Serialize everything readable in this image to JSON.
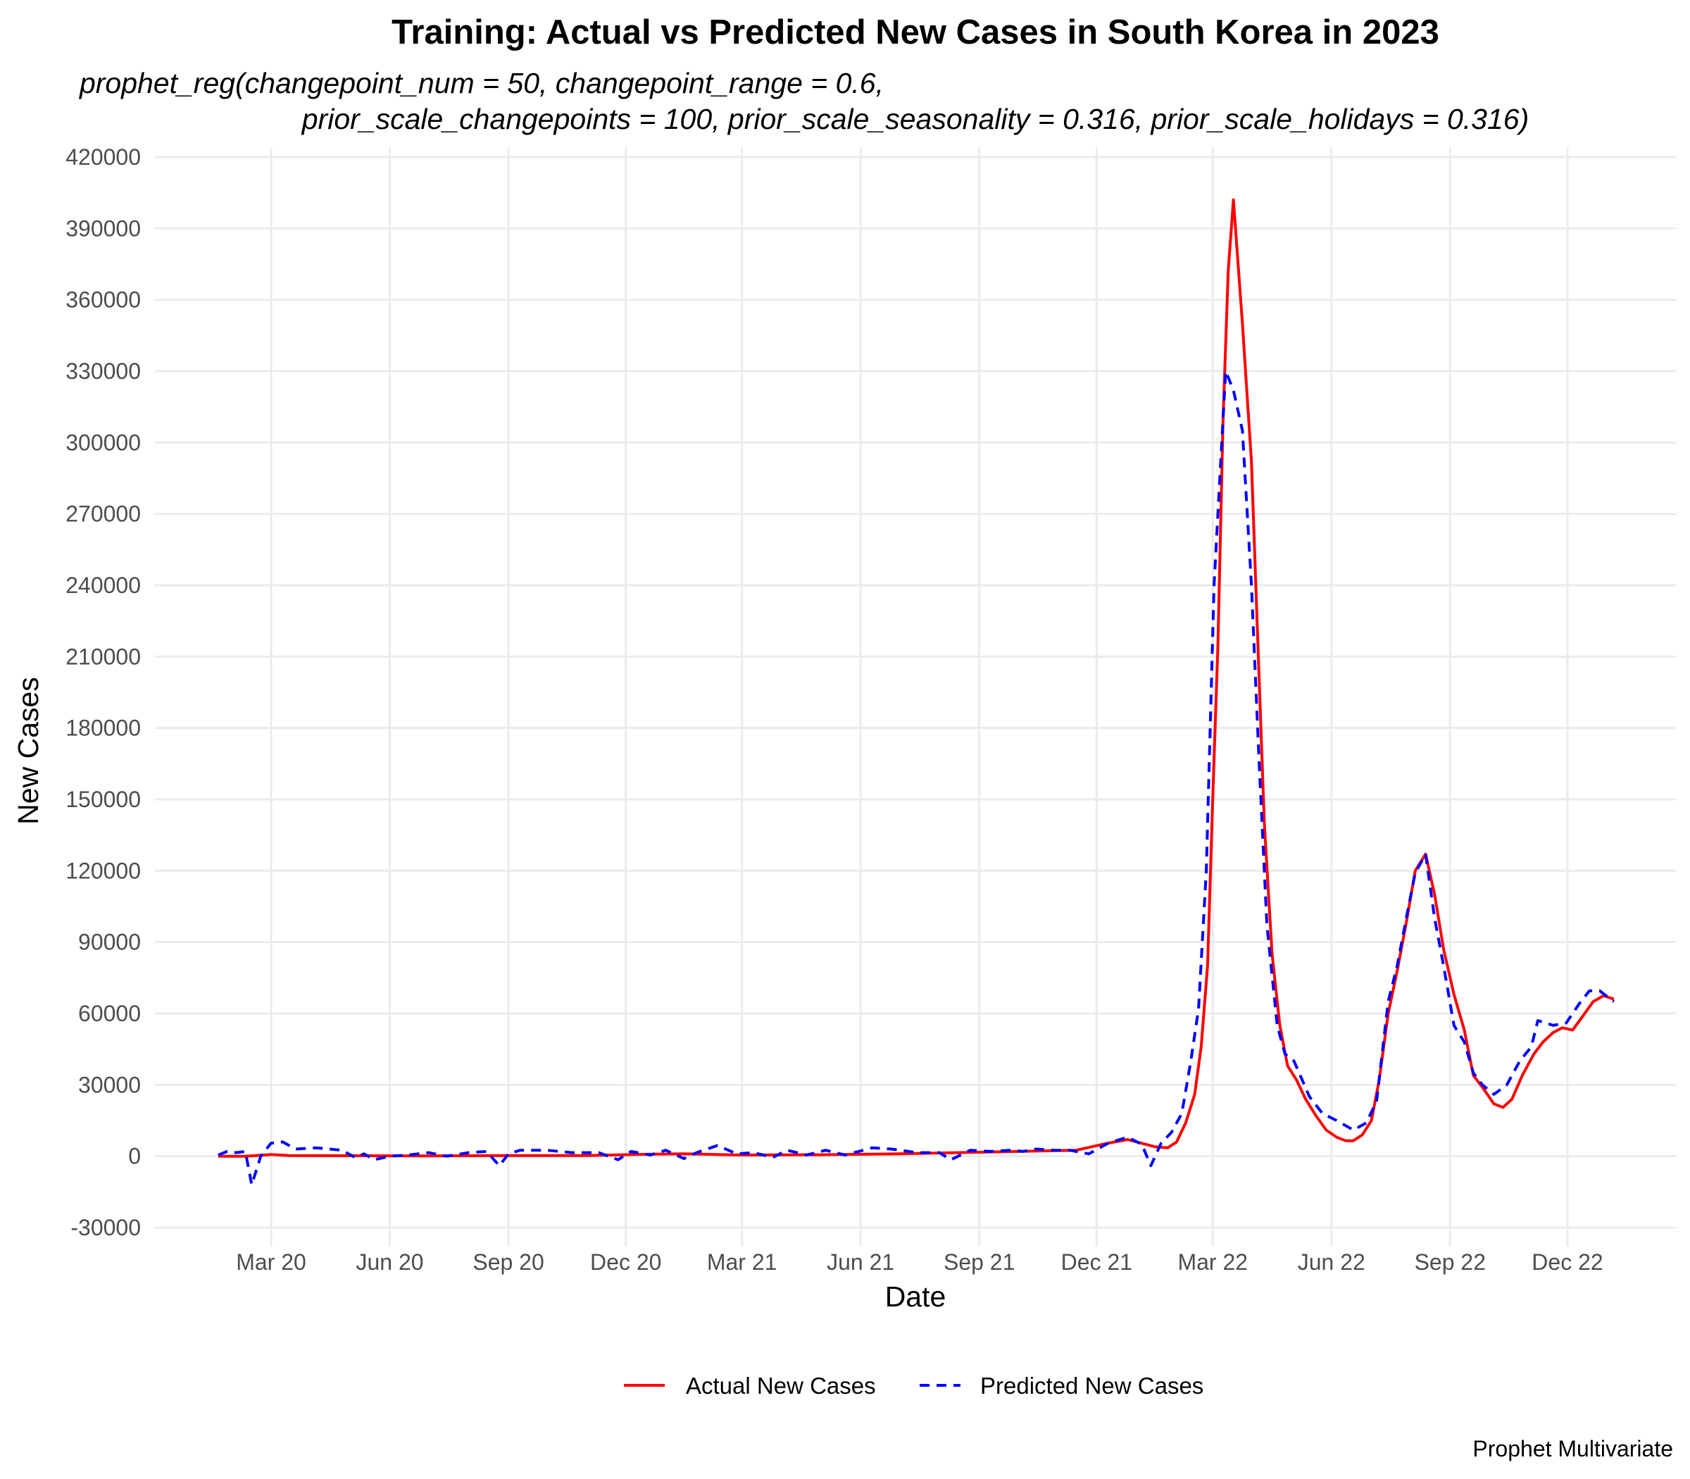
{
  "chart_data": {
    "type": "line",
    "title": "Training: Actual vs Predicted New Cases in South Korea in 2023",
    "subtitle_lines": [
      "prophet_reg(changepoint_num = 50, changepoint_range = 0.6,",
      "prior_scale_changepoints = 100, prior_scale_seasonality = 0.316, prior_scale_holidays = 0.316)"
    ],
    "xlabel": "Date",
    "ylabel": "New Cases",
    "caption": "Prophet Multivariate",
    "ylim": [
      -30000,
      420000
    ],
    "y_ticks": [
      -30000,
      0,
      30000,
      60000,
      90000,
      120000,
      150000,
      180000,
      210000,
      240000,
      270000,
      300000,
      330000,
      360000,
      390000,
      420000
    ],
    "x_ticks": [
      "Mar 20",
      "Jun 20",
      "Sep 20",
      "Dec 20",
      "Mar 21",
      "Jun 21",
      "Sep 21",
      "Dec 21",
      "Mar 22",
      "Jun 22",
      "Sep 22",
      "Dec 22"
    ],
    "x_tick_dates": [
      "2020-03-01",
      "2020-06-01",
      "2020-09-01",
      "2020-12-01",
      "2021-03-01",
      "2021-06-01",
      "2021-09-01",
      "2021-12-01",
      "2022-03-01",
      "2022-06-01",
      "2022-09-01",
      "2022-12-01"
    ],
    "xlim": [
      "2020-01-01",
      "2023-02-28"
    ],
    "grid": true,
    "legend_position": "bottom",
    "series": [
      {
        "name": "Actual New Cases",
        "color": "#ff0000",
        "dash": "solid",
        "points": [
          [
            "2020-01-20",
            0
          ],
          [
            "2020-02-10",
            0
          ],
          [
            "2020-03-01",
            700
          ],
          [
            "2020-03-15",
            300
          ],
          [
            "2020-05-01",
            200
          ],
          [
            "2020-07-01",
            100
          ],
          [
            "2020-09-01",
            300
          ],
          [
            "2020-11-01",
            300
          ],
          [
            "2020-12-15",
            800
          ],
          [
            "2021-01-15",
            1000
          ],
          [
            "2021-03-01",
            500
          ],
          [
            "2021-05-01",
            600
          ],
          [
            "2021-07-01",
            1000
          ],
          [
            "2021-08-15",
            1500
          ],
          [
            "2021-10-01",
            2000
          ],
          [
            "2021-11-15",
            2500
          ],
          [
            "2021-12-10",
            5500
          ],
          [
            "2021-12-25",
            7000
          ],
          [
            "2022-01-15",
            4000
          ],
          [
            "2022-01-25",
            3500
          ],
          [
            "2022-02-01",
            6000
          ],
          [
            "2022-02-08",
            14000
          ],
          [
            "2022-02-15",
            26000
          ],
          [
            "2022-02-20",
            46000
          ],
          [
            "2022-02-25",
            80000
          ],
          [
            "2022-03-01",
            150000
          ],
          [
            "2022-03-05",
            215000
          ],
          [
            "2022-03-09",
            310000
          ],
          [
            "2022-03-13",
            372000
          ],
          [
            "2022-03-17",
            402000
          ],
          [
            "2022-03-24",
            350000
          ],
          [
            "2022-03-31",
            292000
          ],
          [
            "2022-04-05",
            215000
          ],
          [
            "2022-04-10",
            140000
          ],
          [
            "2022-04-16",
            85000
          ],
          [
            "2022-04-22",
            55000
          ],
          [
            "2022-04-28",
            38000
          ],
          [
            "2022-05-05",
            32000
          ],
          [
            "2022-05-12",
            24000
          ],
          [
            "2022-05-20",
            17000
          ],
          [
            "2022-05-28",
            11000
          ],
          [
            "2022-06-05",
            8000
          ],
          [
            "2022-06-12",
            6500
          ],
          [
            "2022-06-18",
            6500
          ],
          [
            "2022-06-25",
            9000
          ],
          [
            "2022-07-02",
            15000
          ],
          [
            "2022-07-08",
            32000
          ],
          [
            "2022-07-15",
            60000
          ],
          [
            "2022-07-22",
            78000
          ],
          [
            "2022-07-29",
            98000
          ],
          [
            "2022-08-05",
            120000
          ],
          [
            "2022-08-13",
            127000
          ],
          [
            "2022-08-20",
            110000
          ],
          [
            "2022-08-27",
            87000
          ],
          [
            "2022-09-04",
            68000
          ],
          [
            "2022-09-12",
            53000
          ],
          [
            "2022-09-19",
            34000
          ],
          [
            "2022-09-26",
            29000
          ],
          [
            "2022-10-05",
            22000
          ],
          [
            "2022-10-12",
            20500
          ],
          [
            "2022-10-19",
            24000
          ],
          [
            "2022-10-27",
            34000
          ],
          [
            "2022-11-05",
            43000
          ],
          [
            "2022-11-12",
            48000
          ],
          [
            "2022-11-20",
            52000
          ],
          [
            "2022-11-27",
            54000
          ],
          [
            "2022-12-05",
            53000
          ],
          [
            "2022-12-13",
            59000
          ],
          [
            "2022-12-21",
            65000
          ],
          [
            "2022-12-29",
            67500
          ],
          [
            "2023-01-06",
            66000
          ]
        ]
      },
      {
        "name": "Predicted New Cases",
        "color": "#0000ff",
        "dash": "dashed",
        "points": [
          [
            "2020-01-20",
            500
          ],
          [
            "2020-01-27",
            2000
          ],
          [
            "2020-02-03",
            1500
          ],
          [
            "2020-02-10",
            2000
          ],
          [
            "2020-02-15",
            -12000
          ],
          [
            "2020-02-22",
            0
          ],
          [
            "2020-03-01",
            5500
          ],
          [
            "2020-03-10",
            6000
          ],
          [
            "2020-03-20",
            3000
          ],
          [
            "2020-04-05",
            3500
          ],
          [
            "2020-04-25",
            2500
          ],
          [
            "2020-05-05",
            -500
          ],
          [
            "2020-05-12",
            1000
          ],
          [
            "2020-05-20",
            -1500
          ],
          [
            "2020-06-01",
            0
          ],
          [
            "2020-06-15",
            500
          ],
          [
            "2020-07-01",
            1500
          ],
          [
            "2020-07-15",
            0
          ],
          [
            "2020-08-01",
            1500
          ],
          [
            "2020-08-15",
            2000
          ],
          [
            "2020-08-25",
            -4000
          ],
          [
            "2020-09-01",
            1000
          ],
          [
            "2020-09-10",
            2500
          ],
          [
            "2020-10-01",
            2500
          ],
          [
            "2020-10-20",
            1500
          ],
          [
            "2020-11-10",
            1500
          ],
          [
            "2020-11-25",
            -1500
          ],
          [
            "2020-12-05",
            2000
          ],
          [
            "2020-12-20",
            500
          ],
          [
            "2021-01-01",
            2500
          ],
          [
            "2021-01-15",
            -1000
          ],
          [
            "2021-01-25",
            1500
          ],
          [
            "2021-02-10",
            4500
          ],
          [
            "2021-02-25",
            1000
          ],
          [
            "2021-03-10",
            1500
          ],
          [
            "2021-03-25",
            -500
          ],
          [
            "2021-04-05",
            2500
          ],
          [
            "2021-04-20",
            500
          ],
          [
            "2021-05-05",
            2500
          ],
          [
            "2021-05-20",
            500
          ],
          [
            "2021-06-10",
            3500
          ],
          [
            "2021-06-25",
            3000
          ],
          [
            "2021-07-15",
            1500
          ],
          [
            "2021-08-01",
            1500
          ],
          [
            "2021-08-10",
            -1500
          ],
          [
            "2021-08-25",
            2500
          ],
          [
            "2021-09-10",
            2000
          ],
          [
            "2021-09-25",
            2500
          ],
          [
            "2021-10-05",
            2000
          ],
          [
            "2021-10-15",
            3000
          ],
          [
            "2021-10-30",
            2500
          ],
          [
            "2021-11-10",
            2500
          ],
          [
            "2021-11-25",
            1000
          ],
          [
            "2021-12-10",
            5500
          ],
          [
            "2021-12-25",
            8000
          ],
          [
            "2022-01-05",
            5000
          ],
          [
            "2022-01-12",
            -4000
          ],
          [
            "2022-01-20",
            5500
          ],
          [
            "2022-01-28",
            10000
          ],
          [
            "2022-02-05",
            18000
          ],
          [
            "2022-02-12",
            40000
          ],
          [
            "2022-02-18",
            62000
          ],
          [
            "2022-02-24",
            120000
          ],
          [
            "2022-03-02",
            240000
          ],
          [
            "2022-03-07",
            290000
          ],
          [
            "2022-03-11",
            330000
          ],
          [
            "2022-03-17",
            322000
          ],
          [
            "2022-03-24",
            305000
          ],
          [
            "2022-03-31",
            240000
          ],
          [
            "2022-04-06",
            165000
          ],
          [
            "2022-04-12",
            97000
          ],
          [
            "2022-04-20",
            55000
          ],
          [
            "2022-04-26",
            43000
          ],
          [
            "2022-05-03",
            40000
          ],
          [
            "2022-05-15",
            25000
          ],
          [
            "2022-05-25",
            18000
          ],
          [
            "2022-06-05",
            15000
          ],
          [
            "2022-06-18",
            11000
          ],
          [
            "2022-06-28",
            14000
          ],
          [
            "2022-07-06",
            23000
          ],
          [
            "2022-07-15",
            65000
          ],
          [
            "2022-07-22",
            80000
          ],
          [
            "2022-07-29",
            100000
          ],
          [
            "2022-08-05",
            119000
          ],
          [
            "2022-08-13",
            127000
          ],
          [
            "2022-08-20",
            100000
          ],
          [
            "2022-08-27",
            80000
          ],
          [
            "2022-09-04",
            55000
          ],
          [
            "2022-09-12",
            48000
          ],
          [
            "2022-09-19",
            35000
          ],
          [
            "2022-09-26",
            30000
          ],
          [
            "2022-10-05",
            26000
          ],
          [
            "2022-10-15",
            30000
          ],
          [
            "2022-10-25",
            40000
          ],
          [
            "2022-11-03",
            46000
          ],
          [
            "2022-11-08",
            57000
          ],
          [
            "2022-11-20",
            55000
          ],
          [
            "2022-11-30",
            56000
          ],
          [
            "2022-12-10",
            64000
          ],
          [
            "2022-12-18",
            69500
          ],
          [
            "2022-12-26",
            69500
          ],
          [
            "2023-01-06",
            65000
          ]
        ]
      }
    ]
  }
}
